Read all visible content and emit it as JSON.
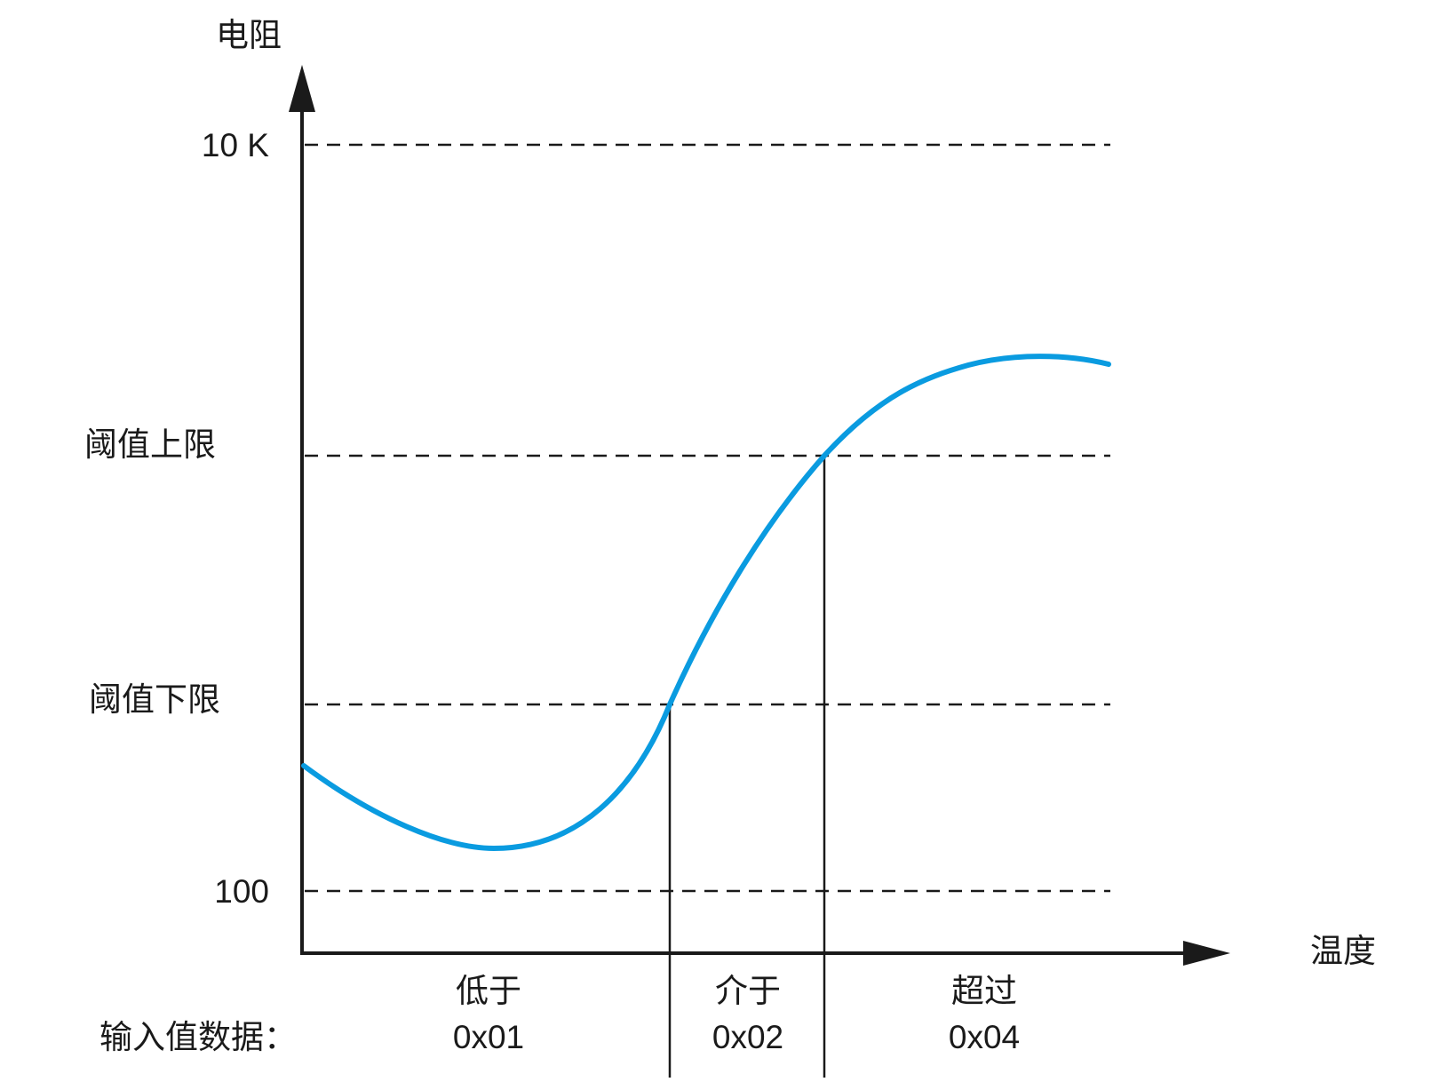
{
  "y_axis": {
    "label": "电阻"
  },
  "x_axis": {
    "label": "温度"
  },
  "y_levels": {
    "top": "10 K",
    "upper_threshold": "阈值上限",
    "lower_threshold": "阈值下限",
    "bottom": "100"
  },
  "row_label": "输入值数据：",
  "regions": [
    {
      "label": "低于",
      "code": "0x01"
    },
    {
      "label": "介于",
      "code": "0x02"
    },
    {
      "label": "超过",
      "code": "0x04"
    }
  ],
  "colors": {
    "curve": "#0a9be0",
    "lines": "#1a1a1a"
  }
}
